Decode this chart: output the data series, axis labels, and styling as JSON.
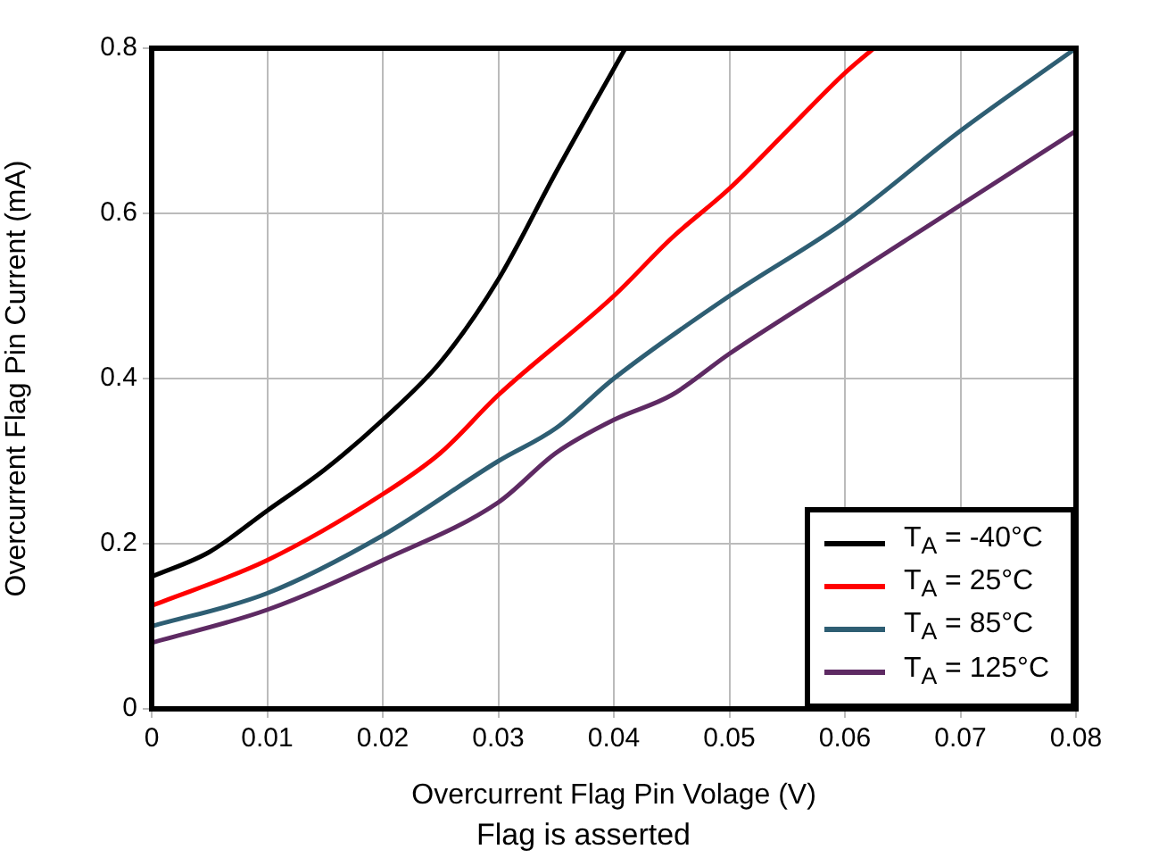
{
  "chart_data": {
    "type": "line",
    "xlabel": "Overcurrent Flag Pin Volage (V)",
    "ylabel": "Overcurrent Flag Pin Current (mA)",
    "annotations": [
      "Flag is asserted"
    ],
    "xlim": [
      0,
      0.08
    ],
    "xticks": [
      0,
      0.01,
      0.02,
      0.03,
      0.04,
      0.05,
      0.06,
      0.07,
      0.08
    ],
    "ylim": [
      0,
      0.8
    ],
    "yticks": [
      0,
      0.2,
      0.4,
      0.6,
      0.8
    ],
    "grid": true,
    "legend": "bottom right",
    "marker": "none",
    "line_style": "solid",
    "series": [
      {
        "name": "T$_{A}$ = -40°C",
        "color": "#000000",
        "x": [
          0,
          0.005,
          0.01,
          0.015,
          0.02,
          0.025,
          0.03,
          0.035,
          0.041
        ],
        "values": [
          0.16,
          0.19,
          0.24,
          0.29,
          0.35,
          0.42,
          0.52,
          0.65,
          0.8
        ]
      },
      {
        "name": "T$_{A}$ = 25°C",
        "color": "#ff0000",
        "x": [
          0,
          0.01,
          0.02,
          0.025,
          0.03,
          0.04,
          0.045,
          0.05,
          0.055,
          0.06,
          0.0625
        ],
        "values": [
          0.125,
          0.18,
          0.26,
          0.31,
          0.38,
          0.5,
          0.57,
          0.63,
          0.7,
          0.77,
          0.8
        ]
      },
      {
        "name": "T$_{A}$ = 85°C",
        "color": "#2e5e73",
        "x": [
          0,
          0.01,
          0.02,
          0.03,
          0.035,
          0.04,
          0.05,
          0.06,
          0.07,
          0.08
        ],
        "values": [
          0.1,
          0.14,
          0.21,
          0.3,
          0.34,
          0.4,
          0.5,
          0.59,
          0.7,
          0.8
        ]
      },
      {
        "name": "T$_{A}$ = 125°C",
        "color": "#5e2a63",
        "x": [
          0,
          0.01,
          0.02,
          0.03,
          0.035,
          0.04,
          0.045,
          0.05,
          0.06,
          0.07,
          0.08
        ],
        "values": [
          0.08,
          0.12,
          0.18,
          0.25,
          0.31,
          0.35,
          0.38,
          0.43,
          0.52,
          0.61,
          0.7
        ]
      }
    ]
  }
}
